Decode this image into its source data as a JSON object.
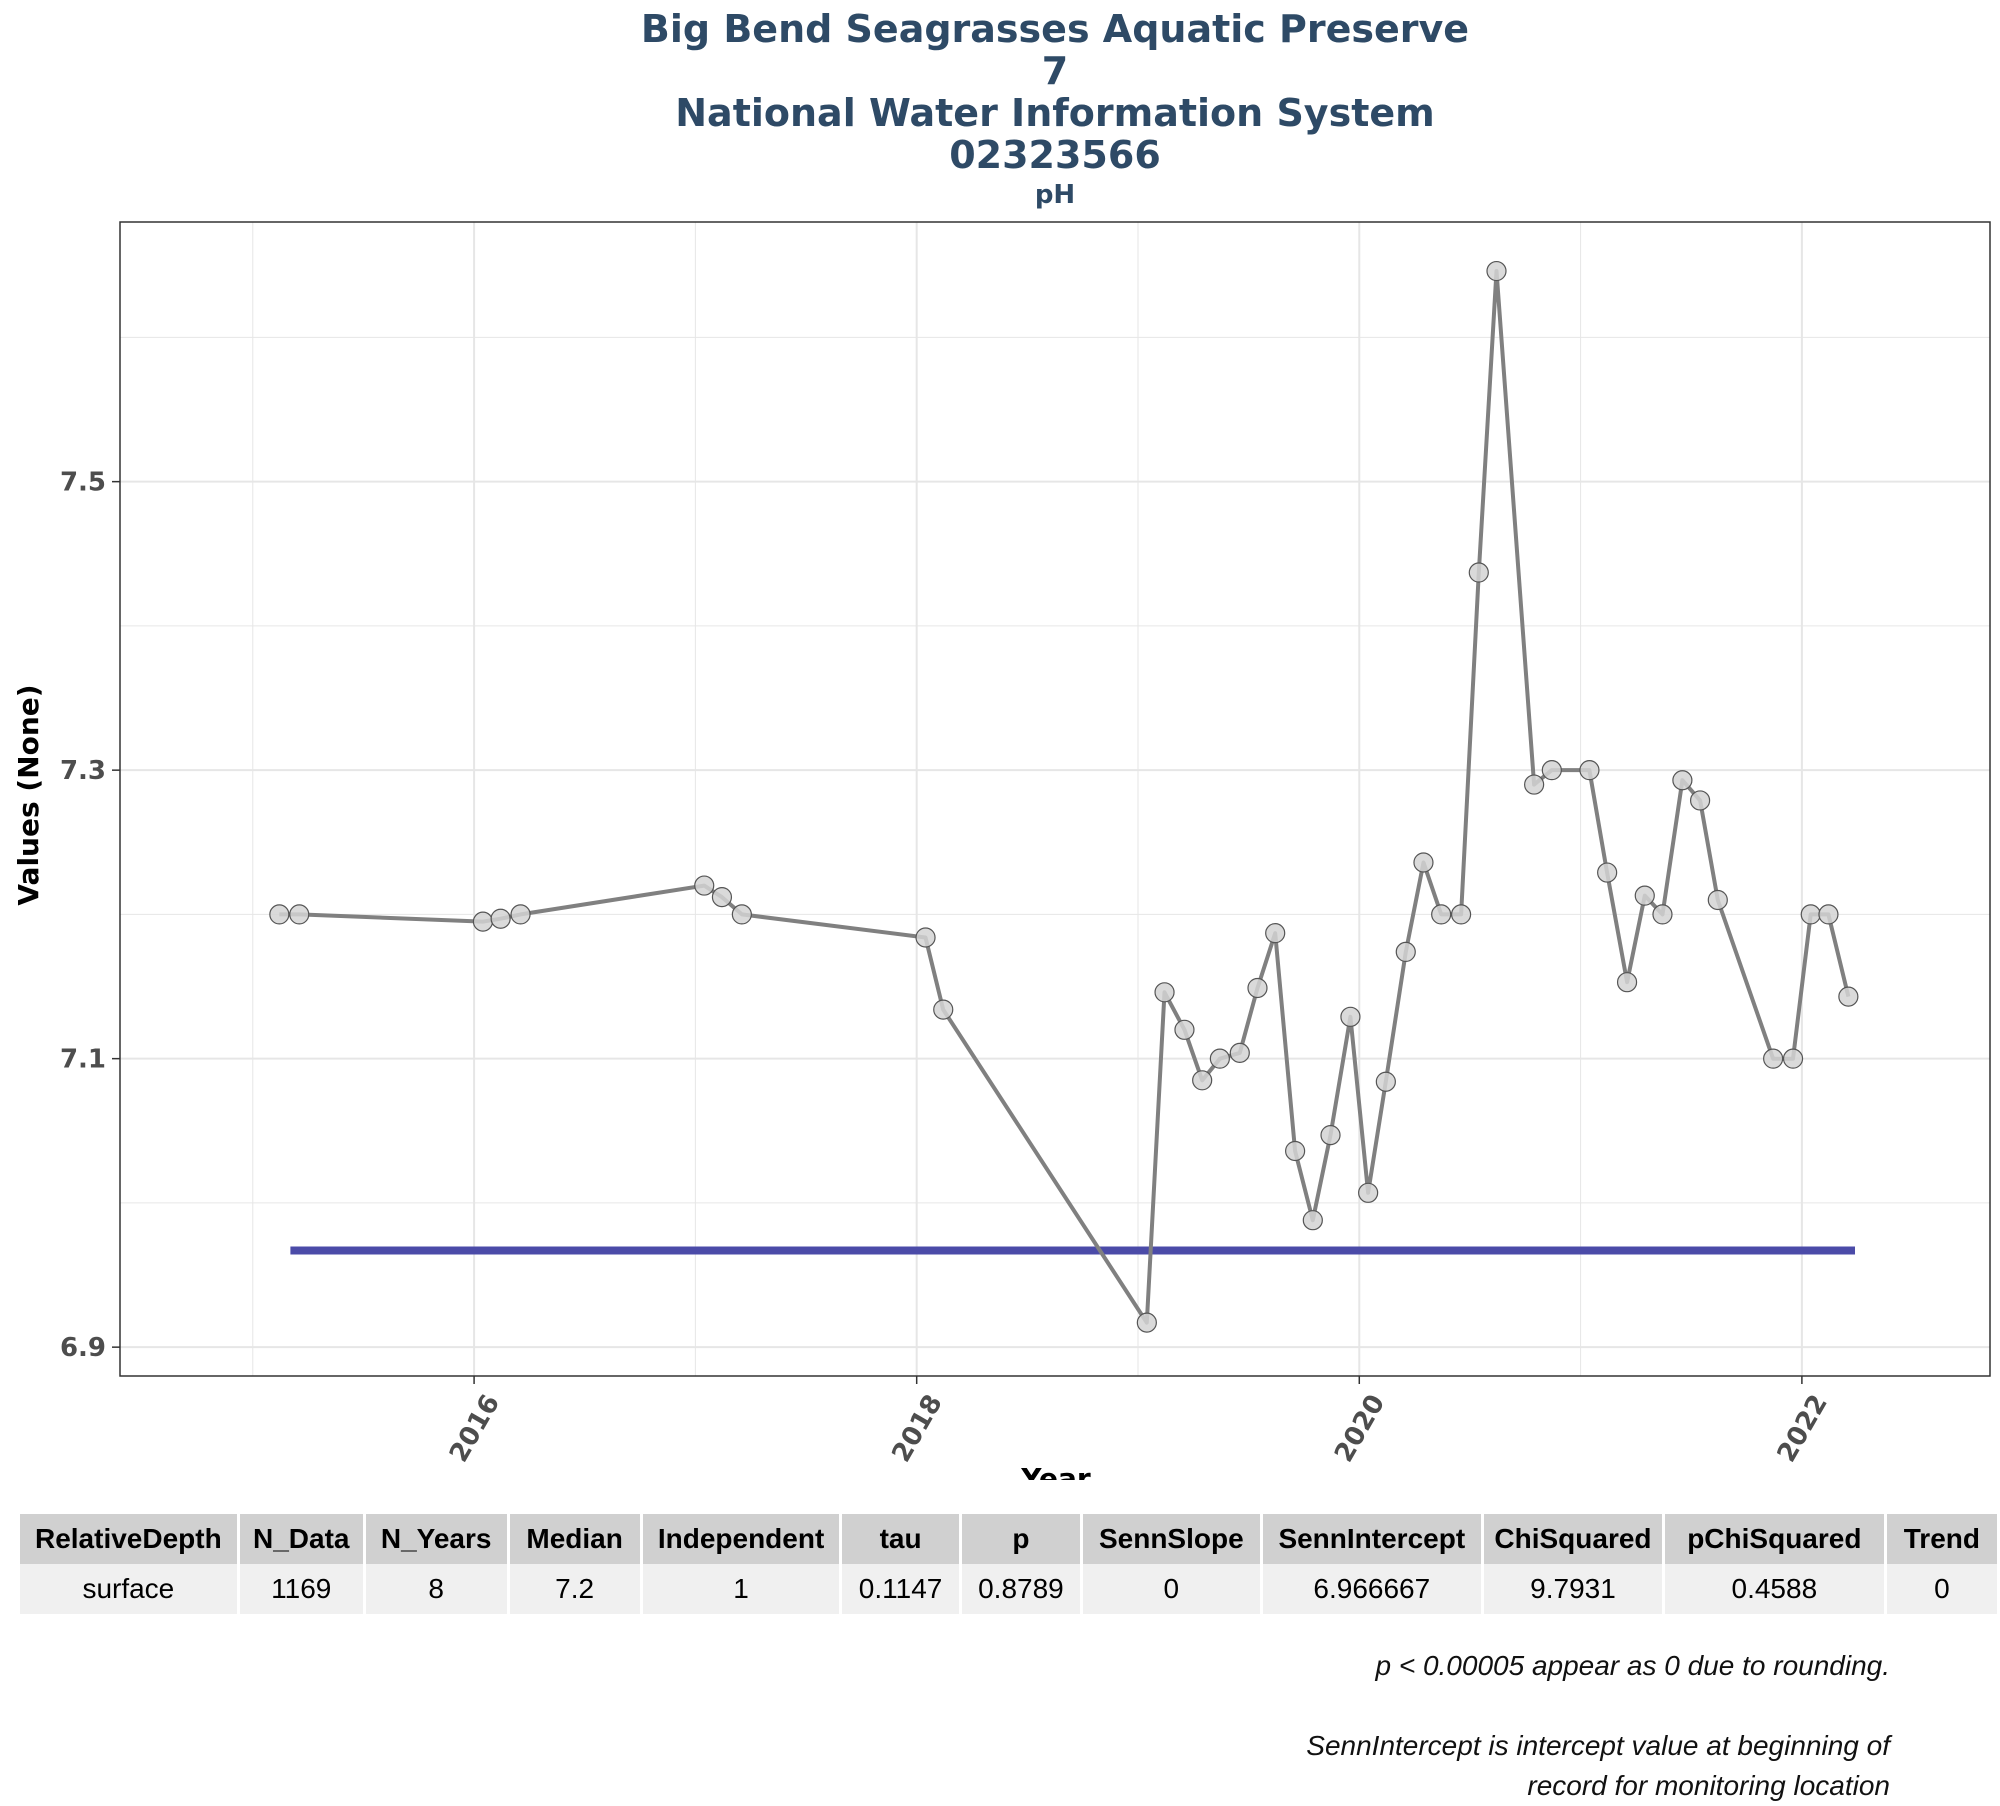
{
  "chart_data": {
    "type": "line",
    "title_lines": [
      "Big Bend Seagrasses Aquatic Preserve",
      "7",
      "National Water Information System",
      "02323566"
    ],
    "subtitle": "pH",
    "xlabel": "Year",
    "ylabel": "Values (None)",
    "x_ticks": [
      2016,
      2018,
      2020,
      2022
    ],
    "y_ticks": [
      6.9,
      7.1,
      7.3,
      7.5
    ],
    "xlim": [
      2014.4,
      2022.85
    ],
    "ylim": [
      6.88,
      7.68
    ],
    "grid": true,
    "series": [
      {
        "x": [
          2015.12,
          2015.21,
          2016.04,
          2016.12,
          2016.21,
          2017.04,
          2017.12,
          2017.21,
          2018.04,
          2018.12,
          2019.04,
          2019.12,
          2019.21,
          2019.29,
          2019.37,
          2019.46,
          2019.54,
          2019.62,
          2019.71,
          2019.79,
          2019.87,
          2019.96,
          2020.04,
          2020.12,
          2020.21,
          2020.29,
          2020.37,
          2020.46,
          2020.54,
          2020.62,
          2020.79,
          2020.87,
          2021.04,
          2021.12,
          2021.21,
          2021.29,
          2021.37,
          2021.46,
          2021.54,
          2021.62,
          2021.87,
          2021.96,
          2022.04,
          2022.12,
          2022.21
        ],
        "y": [
          7.2,
          7.2,
          7.195,
          7.197,
          7.2,
          7.22,
          7.212,
          7.2,
          7.184,
          7.134,
          6.917,
          7.146,
          7.12,
          7.085,
          7.1,
          7.104,
          7.149,
          7.187,
          7.036,
          6.988,
          7.047,
          7.129,
          7.007,
          7.084,
          7.174,
          7.236,
          7.2,
          7.2,
          7.437,
          7.646,
          7.29,
          7.3,
          7.3,
          7.229,
          7.153,
          7.213,
          7.2,
          7.293,
          7.279,
          7.21,
          7.1,
          7.1,
          7.2,
          7.2,
          7.143
        ]
      }
    ],
    "trend_line": {
      "x": [
        2015.17,
        2022.24
      ],
      "y": [
        6.967,
        6.967
      ]
    },
    "colors": {
      "line": "#808080",
      "point_fill": "#d3d3d3",
      "point_stroke": "#555555",
      "trend": "#4b4ba8",
      "grid": "#e6e6e6",
      "title": "#2e4a66"
    }
  },
  "table": {
    "headers": [
      "RelativeDepth",
      "N_Data",
      "N_Years",
      "Median",
      "Independent",
      "tau",
      "p",
      "SennSlope",
      "SennIntercept",
      "ChiSquared",
      "pChiSquared",
      "Trend"
    ],
    "rows": [
      [
        "surface",
        "1169",
        "8",
        "7.2",
        "1",
        "0.1147",
        "0.8789",
        "0",
        "6.966667",
        "9.7931",
        "0.4588",
        "0"
      ]
    ]
  },
  "notes": {
    "note1": "p < 0.00005 appear as 0 due to rounding.",
    "note2_line1": "SennIntercept is intercept value at beginning of",
    "note2_line2": "record for monitoring location"
  }
}
